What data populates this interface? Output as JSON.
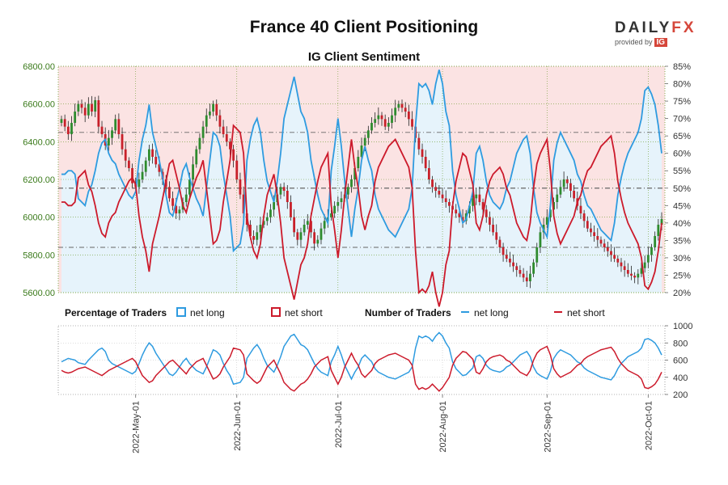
{
  "header": {
    "title": "France 40 Client Positioning",
    "subtitle": "IG Client Sentiment"
  },
  "branding": {
    "logo_daily": "DAILY",
    "logo_fx": "FX",
    "provided_by": "provided by",
    "ig": "IG"
  },
  "legend": {
    "percentage_label": "Percentage of Traders",
    "net_long": "net long",
    "net_short": "net short",
    "number_label": "Number of Traders"
  },
  "colors": {
    "long": "#2e9be0",
    "short": "#cc1a2b",
    "long_fill": "#e6f3fb",
    "short_fill": "#fbe3e3",
    "candle_up": "#2e8b2e",
    "candle_down": "#c8202a",
    "grid": "#6a9a2a"
  },
  "chart_data": [
    {
      "type": "line",
      "name": "price_sentiment",
      "price_axis": {
        "ticks": [
          5600,
          5800,
          6000,
          6200,
          6400,
          6600,
          6800
        ],
        "tick_labels": [
          "5600.00",
          "5800.00",
          "6000.00",
          "6200.00",
          "6400.00",
          "6600.00",
          "6800.00"
        ],
        "range": [
          5600,
          6800
        ]
      },
      "sentiment_axis": {
        "ticks": [
          20,
          25,
          30,
          35,
          40,
          45,
          50,
          55,
          60,
          65,
          70,
          75,
          80,
          85
        ],
        "tick_labels": [
          "20%",
          "25%",
          "30%",
          "35%",
          "40%",
          "45%",
          "50%",
          "55%",
          "60%",
          "65%",
          "70%",
          "75%",
          "80%",
          "85%"
        ],
        "range": [
          20,
          85
        ]
      },
      "x_axis": {
        "tick_labels": [
          "2022-May-01",
          "2022-Jun-01",
          "2022-Jul-01",
          "2022-Aug-01",
          "2022-Sep-01",
          "2022-Oct-01"
        ]
      },
      "reference_lines_percent": [
        66,
        50,
        33
      ],
      "series": [
        {
          "key": "net_long_pct",
          "values": [
            54,
            54,
            55,
            55,
            54,
            47,
            46,
            45,
            49,
            51,
            55,
            60,
            63,
            64,
            60,
            58,
            57,
            54,
            52,
            50,
            48,
            47,
            49,
            58,
            64,
            68,
            74,
            66,
            62,
            58,
            53,
            48,
            43,
            42,
            46,
            50,
            55,
            57,
            53,
            50,
            47,
            45,
            42,
            50,
            58,
            66,
            65,
            62,
            54,
            48,
            42,
            32,
            33,
            34,
            40,
            58,
            64,
            68,
            70,
            66,
            58,
            52,
            49,
            46,
            52,
            60,
            70,
            74,
            78,
            82,
            77,
            72,
            70,
            66,
            58,
            53,
            48,
            44,
            42,
            40,
            55,
            62,
            70,
            62,
            52,
            44,
            36,
            44,
            50,
            58,
            62,
            58,
            55,
            48,
            44,
            42,
            40,
            38,
            37,
            36,
            38,
            40,
            42,
            44,
            50,
            68,
            80,
            79,
            80,
            78,
            74,
            80,
            84,
            80,
            72,
            68,
            55,
            48,
            44,
            40,
            41,
            45,
            49,
            60,
            62,
            58,
            52,
            48,
            46,
            45,
            44,
            46,
            50,
            52,
            56,
            60,
            62,
            64,
            65,
            60,
            50,
            43,
            40,
            38,
            36,
            45,
            58,
            63,
            66,
            64,
            62,
            60,
            58,
            54,
            52,
            48,
            45,
            44,
            42,
            40,
            38,
            37,
            36,
            35,
            40,
            48,
            53,
            57,
            60,
            62,
            64,
            66,
            70,
            78,
            79,
            77,
            74,
            68,
            60
          ]
        },
        {
          "key": "price_close",
          "values": [
            6520,
            6480,
            6440,
            6500,
            6560,
            6600,
            6580,
            6540,
            6600,
            6560,
            6620,
            6480,
            6440,
            6380,
            6420,
            6460,
            6520,
            6440,
            6360,
            6300,
            6260,
            6180,
            6160,
            6200,
            6240,
            6300,
            6360,
            6320,
            6280,
            6240,
            6200,
            6160,
            6100,
            6060,
            6020,
            6040,
            6080,
            6120,
            6200,
            6280,
            6360,
            6420,
            6480,
            6540,
            6560,
            6600,
            6540,
            6480,
            6440,
            6400,
            6360,
            6300,
            6200,
            6120,
            6020,
            5960,
            5900,
            5880,
            5920,
            5960,
            5980,
            6000,
            6040,
            6080,
            6120,
            6160,
            6140,
            6080,
            6000,
            5920,
            5880,
            5920,
            5960,
            5980,
            5920,
            5860,
            5880,
            5940,
            5980,
            6000,
            6020,
            6060,
            6080,
            6100,
            6120,
            6160,
            6200,
            6260,
            6320,
            6380,
            6420,
            6460,
            6500,
            6520,
            6540,
            6520,
            6480,
            6500,
            6540,
            6580,
            6600,
            6580,
            6560,
            6520,
            6480,
            6420,
            6360,
            6320,
            6260,
            6200,
            6160,
            6140,
            6120,
            6100,
            6080,
            6060,
            6040,
            6020,
            6000,
            5980,
            6020,
            6060,
            6100,
            6120,
            6080,
            6040,
            6000,
            5960,
            5920,
            5880,
            5840,
            5800,
            5780,
            5760,
            5740,
            5720,
            5700,
            5680,
            5660,
            5700,
            5760,
            5840,
            5920,
            5960,
            6000,
            6040,
            6080,
            6120,
            6160,
            6200,
            6180,
            6140,
            6100,
            6060,
            6020,
            5980,
            5940,
            5920,
            5900,
            5880,
            5860,
            5840,
            5820,
            5800,
            5780,
            5760,
            5740,
            5720,
            5700,
            5690,
            5680,
            5700,
            5730,
            5760,
            5800,
            5840,
            5900,
            5960,
            5990
          ]
        }
      ]
    },
    {
      "type": "line",
      "name": "trader_counts",
      "y_axis": {
        "ticks": [
          200,
          400,
          600,
          800,
          1000
        ],
        "tick_labels": [
          "200",
          "400",
          "600",
          "800",
          "1000"
        ],
        "range": [
          200,
          1000
        ]
      },
      "series": [
        {
          "key": "net_long_count",
          "values": [
            580,
            600,
            620,
            610,
            600,
            570,
            560,
            550,
            600,
            640,
            680,
            720,
            740,
            700,
            600,
            560,
            540,
            520,
            500,
            480,
            460,
            440,
            470,
            560,
            660,
            740,
            800,
            760,
            680,
            620,
            560,
            500,
            440,
            420,
            460,
            520,
            580,
            620,
            560,
            520,
            480,
            460,
            440,
            520,
            620,
            720,
            700,
            660,
            560,
            480,
            420,
            320,
            330,
            340,
            400,
            620,
            680,
            740,
            780,
            720,
            620,
            540,
            500,
            460,
            540,
            640,
            760,
            820,
            880,
            900,
            840,
            780,
            760,
            720,
            640,
            560,
            500,
            460,
            440,
            420,
            580,
            660,
            760,
            660,
            540,
            460,
            380,
            460,
            520,
            620,
            660,
            620,
            580,
            500,
            460,
            440,
            420,
            400,
            390,
            380,
            400,
            420,
            440,
            460,
            520,
            740,
            880,
            860,
            880,
            860,
            820,
            880,
            920,
            880,
            800,
            740,
            580,
            500,
            460,
            420,
            430,
            470,
            510,
            640,
            660,
            620,
            540,
            500,
            480,
            470,
            460,
            480,
            520,
            540,
            580,
            620,
            660,
            680,
            700,
            640,
            520,
            450,
            420,
            400,
            380,
            470,
            620,
            680,
            720,
            700,
            680,
            660,
            620,
            580,
            560,
            510,
            480,
            460,
            440,
            420,
            400,
            390,
            380,
            370,
            420,
            500,
            560,
            600,
            640,
            660,
            680,
            700,
            740,
            840,
            850,
            830,
            800,
            740,
            660
          ]
        },
        {
          "key": "net_short_count",
          "values": [
            480,
            460,
            450,
            460,
            480,
            500,
            510,
            520,
            500,
            480,
            460,
            440,
            420,
            450,
            480,
            500,
            520,
            540,
            560,
            580,
            600,
            620,
            580,
            500,
            420,
            380,
            340,
            360,
            420,
            460,
            500,
            540,
            580,
            600,
            560,
            520,
            480,
            440,
            500,
            540,
            580,
            600,
            620,
            540,
            460,
            380,
            400,
            440,
            520,
            580,
            640,
            740,
            730,
            720,
            660,
            440,
            400,
            360,
            330,
            360,
            440,
            520,
            560,
            600,
            520,
            440,
            340,
            300,
            260,
            240,
            280,
            320,
            340,
            380,
            440,
            520,
            560,
            600,
            620,
            640,
            480,
            400,
            320,
            400,
            520,
            600,
            680,
            600,
            540,
            440,
            400,
            440,
            480,
            560,
            600,
            620,
            640,
            660,
            670,
            680,
            660,
            640,
            620,
            600,
            540,
            320,
            260,
            280,
            260,
            280,
            320,
            280,
            240,
            280,
            340,
            400,
            540,
            620,
            660,
            700,
            690,
            650,
            610,
            460,
            440,
            500,
            580,
            620,
            640,
            650,
            660,
            640,
            600,
            580,
            540,
            500,
            460,
            440,
            420,
            480,
            600,
            680,
            720,
            740,
            760,
            660,
            500,
            440,
            400,
            420,
            440,
            460,
            500,
            540,
            560,
            610,
            640,
            660,
            680,
            700,
            720,
            730,
            740,
            750,
            700,
            620,
            560,
            520,
            480,
            460,
            440,
            420,
            380,
            280,
            270,
            290,
            320,
            380,
            460
          ]
        }
      ]
    }
  ]
}
